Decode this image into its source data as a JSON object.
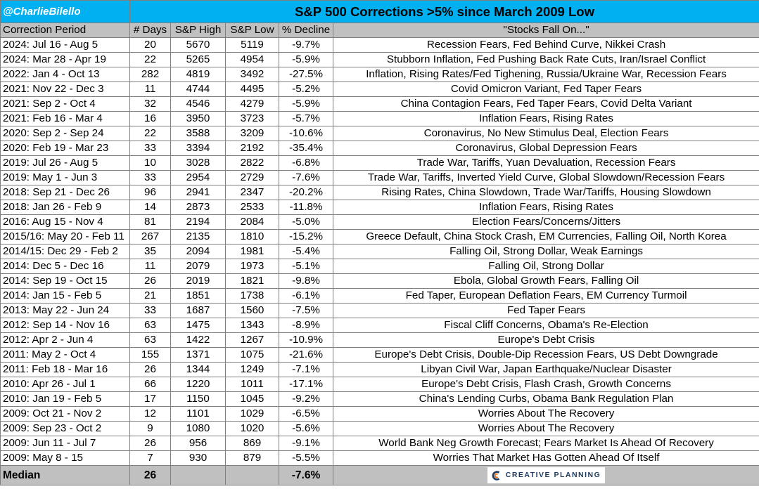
{
  "header": {
    "handle": "@CharlieBilello",
    "title": "S&P 500 Corrections >5% since March 2009 Low"
  },
  "columns": [
    "Correction Period",
    "# Days",
    "S&P High",
    "S&P Low",
    "% Decline",
    "\"Stocks Fall On...\""
  ],
  "rows": [
    {
      "period": "2024: Jul 16 - Aug 5",
      "days": "20",
      "high": "5670",
      "low": "5119",
      "decline": "-9.7%",
      "cause": "Recession Fears, Fed Behind Curve, Nikkei Crash"
    },
    {
      "period": "2024: Mar 28 - Apr 19",
      "days": "22",
      "high": "5265",
      "low": "4954",
      "decline": "-5.9%",
      "cause": "Stubborn Inflation, Fed Pushing Back Rate Cuts, Iran/Israel Conflict"
    },
    {
      "period": "2022: Jan 4 - Oct 13",
      "days": "282",
      "high": "4819",
      "low": "3492",
      "decline": "-27.5%",
      "cause": "Inflation, Rising Rates/Fed Tighening, Russia/Ukraine War, Recession Fears"
    },
    {
      "period": "2021: Nov 22 - Dec 3",
      "days": "11",
      "high": "4744",
      "low": "4495",
      "decline": "-5.2%",
      "cause": "Covid Omicron Variant, Fed Taper Fears"
    },
    {
      "period": "2021: Sep 2 - Oct 4",
      "days": "32",
      "high": "4546",
      "low": "4279",
      "decline": "-5.9%",
      "cause": "China Contagion Fears, Fed Taper Fears, Covid Delta Variant"
    },
    {
      "period": "2021: Feb 16 - Mar 4",
      "days": "16",
      "high": "3950",
      "low": "3723",
      "decline": "-5.7%",
      "cause": "Inflation Fears, Rising Rates"
    },
    {
      "period": "2020: Sep 2 - Sep 24",
      "days": "22",
      "high": "3588",
      "low": "3209",
      "decline": "-10.6%",
      "cause": "Coronavirus, No New Stimulus Deal, Election Fears"
    },
    {
      "period": "2020: Feb 19 - Mar 23",
      "days": "33",
      "high": "3394",
      "low": "2192",
      "decline": "-35.4%",
      "cause": "Coronavirus, Global Depression Fears"
    },
    {
      "period": "2019: Jul 26 - Aug 5",
      "days": "10",
      "high": "3028",
      "low": "2822",
      "decline": "-6.8%",
      "cause": "Trade War, Tariffs, Yuan Devaluation, Recession Fears"
    },
    {
      "period": "2019: May 1 - Jun 3",
      "days": "33",
      "high": "2954",
      "low": "2729",
      "decline": "-7.6%",
      "cause": "Trade War, Tariffs, Inverted Yield Curve, Global Slowdown/Recession Fears"
    },
    {
      "period": "2018: Sep 21 - Dec 26",
      "days": "96",
      "high": "2941",
      "low": "2347",
      "decline": "-20.2%",
      "cause": "Rising Rates, China Slowdown, Trade War/Tariffs, Housing Slowdown"
    },
    {
      "period": "2018: Jan 26 - Feb 9",
      "days": "14",
      "high": "2873",
      "low": "2533",
      "decline": "-11.8%",
      "cause": "Inflation Fears, Rising Rates"
    },
    {
      "period": "2016: Aug 15 - Nov 4",
      "days": "81",
      "high": "2194",
      "low": "2084",
      "decline": "-5.0%",
      "cause": "Election Fears/Concerns/Jitters"
    },
    {
      "period": "2015/16: May 20 - Feb 11",
      "days": "267",
      "high": "2135",
      "low": "1810",
      "decline": "-15.2%",
      "cause": "Greece Default, China Stock Crash, EM Currencies, Falling Oil, North Korea"
    },
    {
      "period": "2014/15: Dec 29 - Feb 2",
      "days": "35",
      "high": "2094",
      "low": "1981",
      "decline": "-5.4%",
      "cause": "Falling Oil, Strong Dollar, Weak Earnings"
    },
    {
      "period": "2014: Dec 5 - Dec 16",
      "days": "11",
      "high": "2079",
      "low": "1973",
      "decline": "-5.1%",
      "cause": "Falling Oil, Strong Dollar"
    },
    {
      "period": "2014: Sep 19 - Oct 15",
      "days": "26",
      "high": "2019",
      "low": "1821",
      "decline": "-9.8%",
      "cause": "Ebola, Global Growth Fears, Falling Oil"
    },
    {
      "period": "2014: Jan 15 - Feb 5",
      "days": "21",
      "high": "1851",
      "low": "1738",
      "decline": "-6.1%",
      "cause": "Fed Taper, European Deflation Fears, EM Currency Turmoil"
    },
    {
      "period": "2013: May 22 - Jun 24",
      "days": "33",
      "high": "1687",
      "low": "1560",
      "decline": "-7.5%",
      "cause": "Fed Taper Fears"
    },
    {
      "period": "2012: Sep 14 - Nov 16",
      "days": "63",
      "high": "1475",
      "low": "1343",
      "decline": "-8.9%",
      "cause": "Fiscal Cliff Concerns, Obama's Re-Election"
    },
    {
      "period": "2012: Apr 2 - Jun 4",
      "days": "63",
      "high": "1422",
      "low": "1267",
      "decline": "-10.9%",
      "cause": "Europe's Debt Crisis"
    },
    {
      "period": "2011: May 2 - Oct 4",
      "days": "155",
      "high": "1371",
      "low": "1075",
      "decline": "-21.6%",
      "cause": "Europe's Debt Crisis, Double-Dip Recession Fears, US Debt Downgrade"
    },
    {
      "period": "2011: Feb 18 - Mar 16",
      "days": "26",
      "high": "1344",
      "low": "1249",
      "decline": "-7.1%",
      "cause": "Libyan Civil War, Japan Earthquake/Nuclear Disaster"
    },
    {
      "period": "2010: Apr 26 - Jul 1",
      "days": "66",
      "high": "1220",
      "low": "1011",
      "decline": "-17.1%",
      "cause": "Europe's Debt Crisis, Flash Crash, Growth Concerns"
    },
    {
      "period": "2010: Jan 19 - Feb 5",
      "days": "17",
      "high": "1150",
      "low": "1045",
      "decline": "-9.2%",
      "cause": "China's Lending Curbs, Obama Bank Regulation Plan"
    },
    {
      "period": "2009: Oct 21 - Nov 2",
      "days": "12",
      "high": "1101",
      "low": "1029",
      "decline": "-6.5%",
      "cause": "Worries About The Recovery"
    },
    {
      "period": "2009: Sep 23 - Oct 2",
      "days": "9",
      "high": "1080",
      "low": "1020",
      "decline": "-5.6%",
      "cause": "Worries About The Recovery"
    },
    {
      "period": "2009: Jun 11 - Jul 7",
      "days": "26",
      "high": "956",
      "low": "869",
      "decline": "-9.1%",
      "cause": "World Bank Neg Growth Forecast; Fears Market Is Ahead Of Recovery"
    },
    {
      "period": "2009: May 8 - 15",
      "days": "7",
      "high": "930",
      "low": "879",
      "decline": "-5.5%",
      "cause": "Worries That Market Has Gotten Ahead Of Itself"
    }
  ],
  "median": {
    "label": "Median",
    "days": "26",
    "decline": "-7.6%"
  },
  "logo": {
    "text": "CREATIVE PLANNING",
    "color": "#1f3a5f"
  },
  "colors": {
    "title_bar": "#00b0f0",
    "header_row": "#c0c0c0",
    "median_row": "#c0c0c0"
  }
}
